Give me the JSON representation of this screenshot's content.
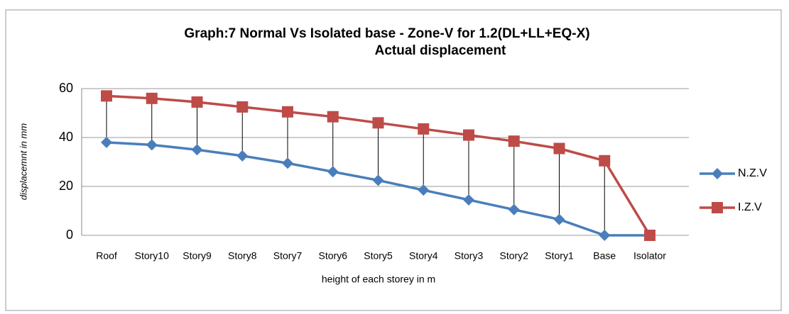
{
  "chart_data": {
    "type": "line",
    "title": [
      "Graph:7 Normal Vs Isolated base - Zone-V for 1.2(DL+LL+EQ-X)",
      "Actual displacement"
    ],
    "x_label": "height of each storey in m",
    "y_label": "displacemnt in mm",
    "categories": [
      "Roof",
      "Story10",
      "Story9",
      "Story8",
      "Story7",
      "Story6",
      "Story5",
      "Story4",
      "Story3",
      "Story2",
      "Story1",
      "Base",
      "Isolator"
    ],
    "series": [
      {
        "name": "N.Z.V",
        "color": "#4a7ebb",
        "marker": "diamond",
        "values": [
          38,
          37,
          35,
          32.5,
          29.5,
          26,
          22.5,
          18.5,
          14.5,
          10.5,
          6.5,
          0,
          0
        ]
      },
      {
        "name": "I.Z.V",
        "color": "#be4b48",
        "marker": "square",
        "values": [
          57,
          56,
          54.5,
          52.5,
          50.5,
          48.5,
          46,
          43.5,
          41,
          38.5,
          35.5,
          30.5,
          0
        ]
      }
    ],
    "drop_lines": true,
    "ylim": [
      0,
      60
    ],
    "yticks": [
      0,
      20,
      40,
      60
    ],
    "grid": true,
    "legend": "right"
  }
}
